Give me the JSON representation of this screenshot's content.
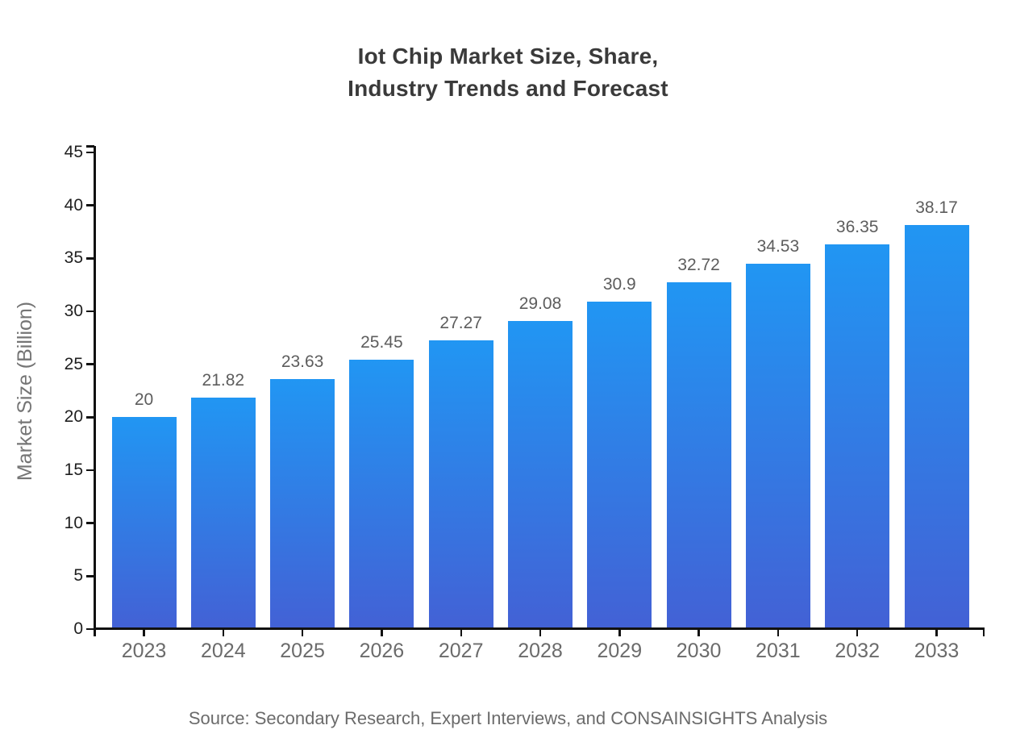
{
  "title": "Iot Chip Market Size, Share,\nIndustry Trends and Forecast",
  "source": "Source: Secondary Research, Expert Interviews, and CONSAINSIGHTS Analysis",
  "colors": {
    "bar_gradient_top": "#2196f3",
    "bar_gradient_bottom": "#4361d5",
    "axis": "#111111"
  },
  "chart_data": {
    "type": "bar",
    "title": "Iot Chip Market Size, Share, Industry Trends and Forecast",
    "categories": [
      "2023",
      "2024",
      "2025",
      "2026",
      "2027",
      "2028",
      "2029",
      "2030",
      "2031",
      "2032",
      "2033"
    ],
    "values": [
      20,
      21.82,
      23.63,
      25.45,
      27.27,
      29.08,
      30.9,
      32.72,
      34.53,
      36.35,
      38.17
    ],
    "value_labels": [
      "20",
      "21.82",
      "23.63",
      "25.45",
      "27.27",
      "29.08",
      "30.9",
      "32.72",
      "34.53",
      "36.35",
      "38.17"
    ],
    "xlabel": "",
    "ylabel": "Market Size (Billion)",
    "ylim": [
      0,
      45
    ],
    "yticks": [
      0,
      5,
      10,
      15,
      20,
      25,
      30,
      35,
      40,
      45
    ],
    "grid": false,
    "legend_position": "none",
    "source": "Source: Secondary Research, Expert Interviews, and CONSAINSIGHTS Analysis"
  }
}
